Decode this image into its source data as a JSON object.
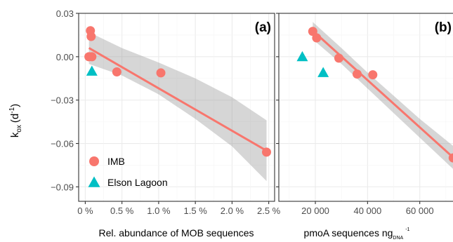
{
  "y_label_main": "k",
  "y_label_sub": "ox",
  "y_label_unit_prefix": "(d",
  "y_label_unit_sup": "-1",
  "y_label_unit_suffix": ")",
  "chart_data": [
    {
      "type": "scatter",
      "panel_label": "(a)",
      "xlabel": "Rel. abundance of MOB sequences",
      "ylim": [
        -0.1,
        0.03
      ],
      "y_ticks": [
        0.03,
        0.0,
        -0.03,
        -0.06,
        -0.09
      ],
      "y_tick_labels": [
        "0.03",
        "0.00",
        "-0.03",
        "-0.06",
        "-0.09"
      ],
      "xlim": [
        -0.0009,
        0.0258
      ],
      "x_ticks": [
        0.0,
        0.005,
        0.01,
        0.015,
        0.02,
        0.025
      ],
      "x_tick_labels": [
        "0 %",
        "0.5 %",
        "1.0 %",
        "1.5 %",
        "2.0 %",
        "2.5 %"
      ],
      "grid": true,
      "legend": {
        "placement": "bottom-left",
        "entries": [
          {
            "label": "IMB",
            "marker": "circle",
            "color": "#F8766D"
          },
          {
            "label": "Elson Lagoon",
            "marker": "triangle",
            "color": "#00BFC4"
          }
        ]
      },
      "series": [
        {
          "name": "IMB",
          "marker": "circle",
          "color": "#F8766D",
          "points": [
            [
              0.0007,
              0.018
            ],
            [
              0.0008,
              0.014
            ],
            [
              0.0005,
              0.0
            ],
            [
              0.0009,
              0.0
            ],
            [
              0.0043,
              -0.0105
            ],
            [
              0.0103,
              -0.0112
            ],
            [
              0.0247,
              -0.066
            ]
          ]
        },
        {
          "name": "Elson Lagoon",
          "marker": "triangle",
          "color": "#00BFC4",
          "points": [
            [
              0.0009,
              -0.01
            ]
          ]
        }
      ],
      "fit": {
        "color": "#F8766D",
        "x": [
          0.0005,
          0.0247
        ],
        "y": [
          0.006,
          -0.065
        ],
        "ci_x": [
          0.0005,
          0.005,
          0.01,
          0.015,
          0.02,
          0.0247
        ],
        "ci_low": [
          -0.005,
          -0.013,
          -0.026,
          -0.043,
          -0.062,
          -0.086
        ],
        "ci_high": [
          0.017,
          0.006,
          -0.004,
          -0.015,
          -0.028,
          -0.044
        ]
      }
    },
    {
      "type": "scatter",
      "panel_label": "(b)",
      "xlabel_main": "pmoA sequences ng",
      "xlabel_sub": "DNA",
      "xlabel_sup": "-1",
      "ylim": [
        -0.1,
        0.03
      ],
      "y_ticks": [
        0.03,
        0.0,
        -0.03,
        -0.06,
        -0.09
      ],
      "xlim": [
        6000,
        73000
      ],
      "x_ticks": [
        20000,
        40000,
        60000
      ],
      "x_tick_labels": [
        "20 000",
        "40 000",
        "60 000"
      ],
      "grid": true,
      "series": [
        {
          "name": "IMB",
          "marker": "circle",
          "color": "#F8766D",
          "points": [
            [
              19000,
              0.0175
            ],
            [
              20500,
              0.013
            ],
            [
              29000,
              -0.001
            ],
            [
              36000,
              -0.012
            ],
            [
              42000,
              -0.0125
            ],
            [
              72800,
              -0.07
            ]
          ]
        },
        {
          "name": "Elson Lagoon",
          "marker": "triangle",
          "color": "#00BFC4",
          "points": [
            [
              15000,
              0.0
            ],
            [
              23000,
              -0.011
            ]
          ]
        }
      ],
      "fit": {
        "color": "#F8766D",
        "x": [
          19000,
          73000
        ],
        "y": [
          0.018,
          -0.07
        ],
        "ci_x": [
          19000,
          30000,
          40000,
          50000,
          60000,
          73000
        ],
        "ci_low": [
          0.012,
          -0.005,
          -0.022,
          -0.039,
          -0.056,
          -0.078
        ],
        "ci_high": [
          0.024,
          0.006,
          -0.011,
          -0.027,
          -0.043,
          -0.062
        ]
      }
    }
  ]
}
